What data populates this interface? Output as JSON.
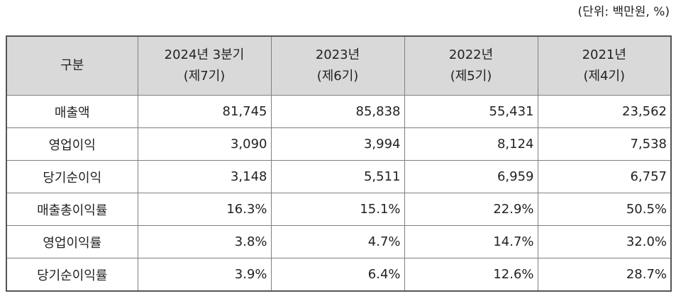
{
  "unit_note": "(단위: 백만원, %)",
  "table": {
    "header": {
      "category": "구분",
      "periods": [
        {
          "line1": "2024년 3분기",
          "line2": "(제7기)"
        },
        {
          "line1": "2023년",
          "line2": "(제6기)"
        },
        {
          "line1": "2022년",
          "line2": "(제5기)"
        },
        {
          "line1": "2021년",
          "line2": "(제4기)"
        }
      ]
    },
    "rows": [
      {
        "label": "매출액",
        "values": [
          "81,745",
          "85,838",
          "55,431",
          "23,562"
        ]
      },
      {
        "label": "영업이익",
        "values": [
          "3,090",
          "3,994",
          "8,124",
          "7,538"
        ]
      },
      {
        "label": "당기순이익",
        "values": [
          "3,148",
          "5,511",
          "6,959",
          "6,757"
        ]
      },
      {
        "label": "매출총이익률",
        "values": [
          "16.3%",
          "15.1%",
          "22.9%",
          "50.5%"
        ]
      },
      {
        "label": "영업이익률",
        "values": [
          "3.8%",
          "4.7%",
          "14.7%",
          "32.0%"
        ]
      },
      {
        "label": "당기순이익률",
        "values": [
          "3.9%",
          "6.4%",
          "12.6%",
          "28.7%"
        ]
      }
    ]
  }
}
